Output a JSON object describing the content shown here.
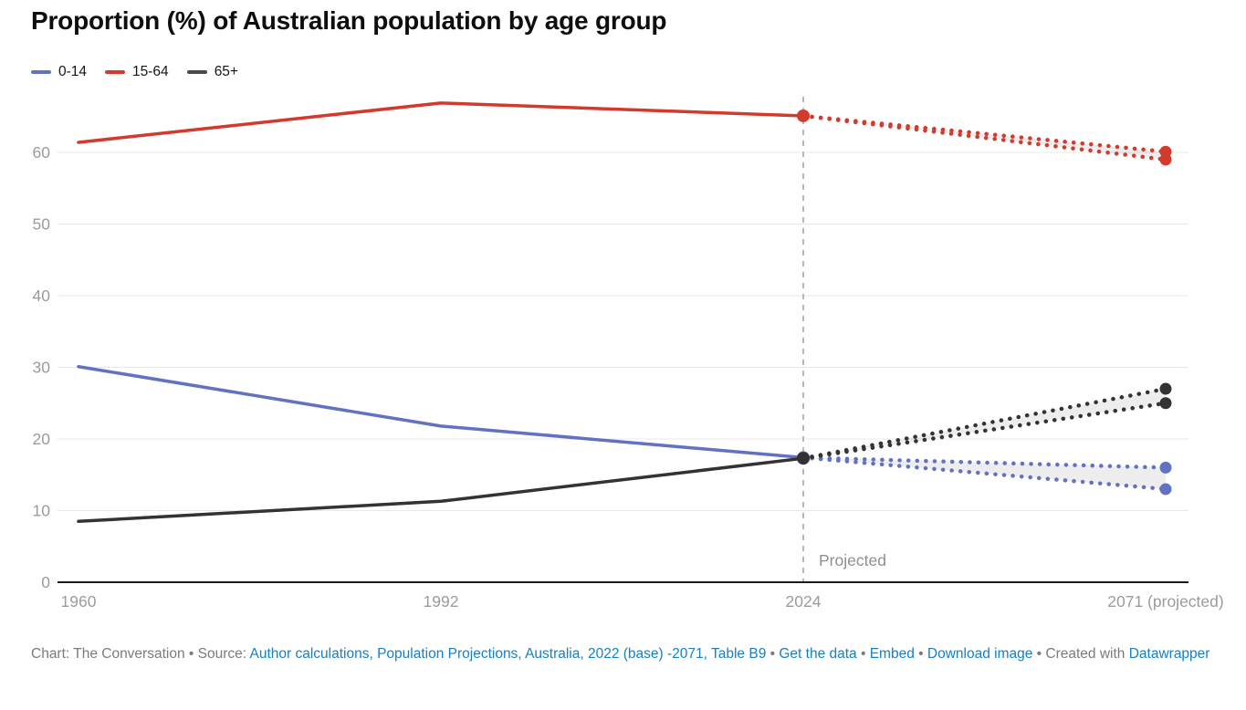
{
  "header": {
    "title": "Proportion (%) of Australian population by age group"
  },
  "legend": {
    "items": [
      {
        "label": "0-14",
        "color": "#6272c3"
      },
      {
        "label": "15-64",
        "color": "#d23a2e"
      },
      {
        "label": "65+",
        "color": "#4a4a4a"
      }
    ]
  },
  "chart_data": {
    "type": "line",
    "title": "Proportion (%) of Australian population by age group",
    "xlabel": "",
    "ylabel": "",
    "x_categories": [
      "1960",
      "1992",
      "2024",
      "2071 (projected)"
    ],
    "yticks": [
      0,
      10,
      20,
      30,
      40,
      50,
      60
    ],
    "ylim": [
      0,
      68
    ],
    "grid": "horizontal",
    "legend_position": "top-left",
    "projection_divider": {
      "at_category": "2024",
      "label": "Projected"
    },
    "series": [
      {
        "name": "0-14",
        "color": "#6272c3",
        "values": [
          30.1,
          21.8,
          17.4
        ],
        "projection_2071": {
          "high": 16.0,
          "low": 13.0
        }
      },
      {
        "name": "15-64",
        "color": "#d23a2e",
        "values": [
          61.4,
          66.9,
          65.1
        ],
        "projection_2071": {
          "high": 60.1,
          "low": 59.0
        }
      },
      {
        "name": "65+",
        "color": "#333333",
        "values": [
          8.5,
          11.3,
          17.3
        ],
        "projection_2071": {
          "high": 27.0,
          "low": 25.0
        }
      }
    ]
  },
  "footer": {
    "parts": [
      {
        "type": "text",
        "text": "Chart: The Conversation • Source: "
      },
      {
        "type": "link",
        "name": "source-link",
        "text": "Author calculations, Population Projections, Australia, 2022 (base) -2071, Table B9"
      },
      {
        "type": "text",
        "text": " • "
      },
      {
        "type": "link",
        "name": "get-the-data-link",
        "text": "Get the data"
      },
      {
        "type": "text",
        "text": " • "
      },
      {
        "type": "link",
        "name": "embed-link",
        "text": "Embed"
      },
      {
        "type": "text",
        "text": " • "
      },
      {
        "type": "link",
        "name": "download-image-link",
        "text": "Download image"
      },
      {
        "type": "text",
        "text": " • Created with "
      },
      {
        "type": "link",
        "name": "datawrapper-link",
        "text": "Datawrapper"
      }
    ]
  },
  "colors": {
    "link_blue": "#1580c4",
    "axis_label_gray": "#9b9b9b",
    "grid_gray": "#e8e8e8",
    "axis_black": "#1a1a1a",
    "divider_gray": "#b8b8b8",
    "projected_label_gray": "#8f8f8f"
  }
}
